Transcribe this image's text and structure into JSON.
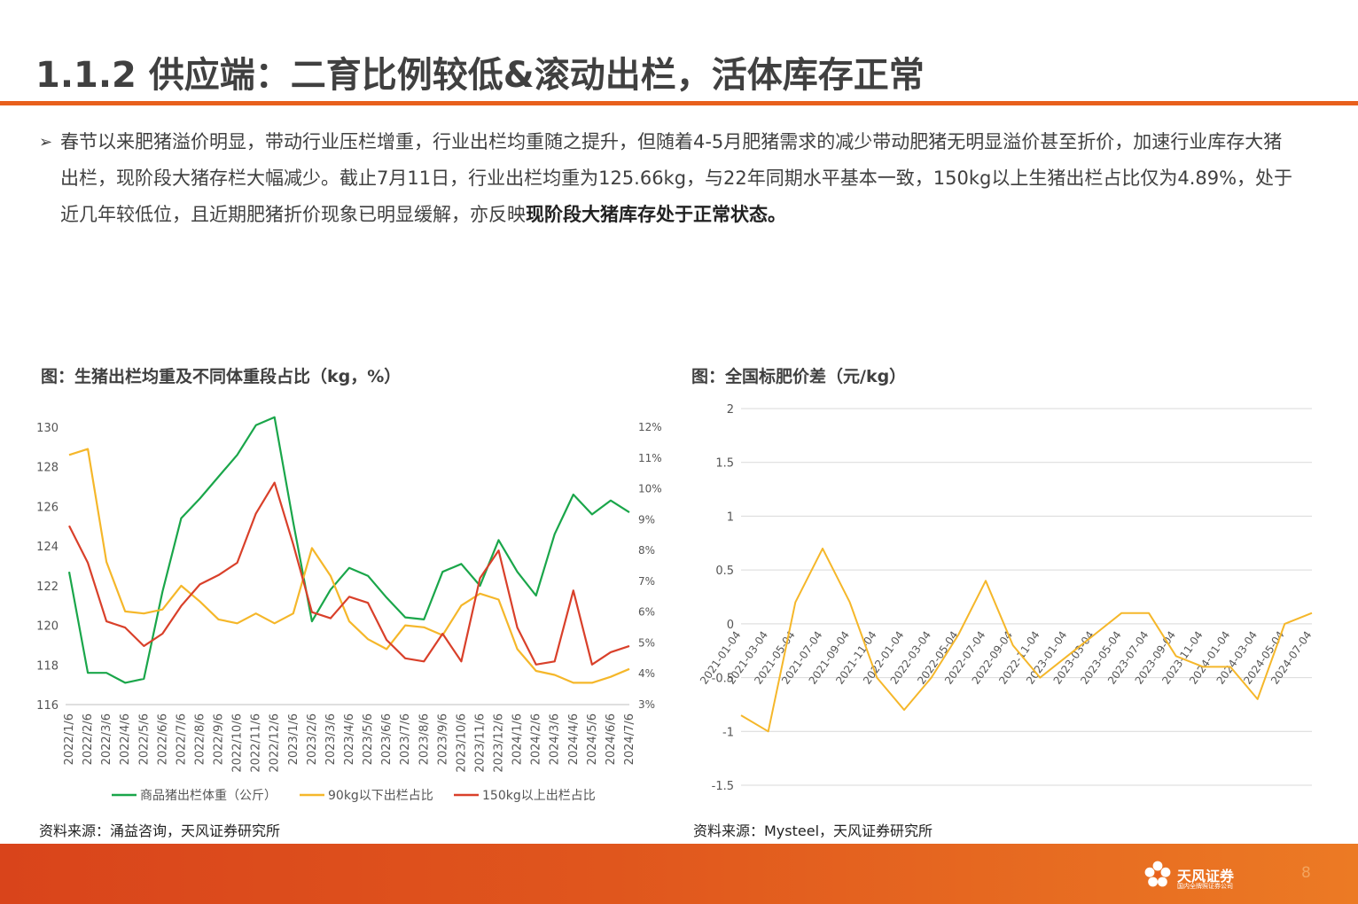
{
  "title": "1.1.2 供应端：二育比例较低&滚动出栏，活体库存正常",
  "bullet": {
    "arrow": "➢",
    "text": "春节以来肥猪溢价明显，带动行业压栏增重，行业出栏均重随之提升，但随着4-5月肥猪需求的减少带动肥猪无明显溢价甚至折价，加速行业库存大猪出栏，现阶段大猪存栏大幅减少。截止7月11日，行业出栏均重为125.66kg，与22年同期水平基本一致，150kg以上生猪出栏占比仅为4.89%，处于近几年较低位，且近期肥猪折价现象已明显缓解，亦反映",
    "bold": "现阶段大猪库存处于正常状态。"
  },
  "left_caption": "图：生猪出栏均重及不同体重段占比（kg，%）",
  "right_caption": "图：全国标肥价差（元/kg）",
  "left_source": "资料来源：涌益咨询，天风证券研究所",
  "right_source": "资料来源：Mysteel，天风证券研究所",
  "footer": {
    "logo_text": "天风证券",
    "logo_sub": "国内全牌照证券公司",
    "page": "8"
  },
  "colors": {
    "green": "#1aa64a",
    "yellow": "#f5b72a",
    "red": "#d9402a",
    "accent": "#e8601c"
  },
  "chart_data": [
    {
      "type": "line",
      "title": "图：生猪出栏均重及不同体重段占比（kg，%）",
      "x": [
        "2022/1/6",
        "2022/2/6",
        "2022/3/6",
        "2022/4/6",
        "2022/5/6",
        "2022/6/6",
        "2022/7/6",
        "2022/8/6",
        "2022/9/6",
        "2022/10/6",
        "2022/11/6",
        "2022/12/6",
        "2023/1/6",
        "2023/2/6",
        "2023/3/6",
        "2023/4/6",
        "2023/5/6",
        "2023/6/6",
        "2023/7/6",
        "2023/8/6",
        "2023/9/6",
        "2023/10/6",
        "2023/11/6",
        "2023/12/6",
        "2024/1/6",
        "2024/2/6",
        "2024/3/6",
        "2024/4/6",
        "2024/5/6",
        "2024/6/6",
        "2024/7/6"
      ],
      "y_left": {
        "label": "kg",
        "range": [
          116,
          130
        ],
        "ticks": [
          "116",
          "118",
          "120",
          "122",
          "124",
          "126",
          "128",
          "130"
        ]
      },
      "y_right": {
        "label": "%",
        "range": [
          3,
          12
        ],
        "ticks": [
          "3%",
          "4%",
          "5%",
          "6%",
          "7%",
          "8%",
          "9%",
          "10%",
          "11%",
          "12%"
        ]
      },
      "series": [
        {
          "name": "商品猪出栏体重（公斤）",
          "axis": "left",
          "color": "#1aa64a",
          "values": [
            122.7,
            117.6,
            117.6,
            117.1,
            117.3,
            121.7,
            125.4,
            126.4,
            127.5,
            128.6,
            130.1,
            130.5,
            125.2,
            120.2,
            121.8,
            122.9,
            122.5,
            121.4,
            120.4,
            120.3,
            122.7,
            123.1,
            122.0,
            124.3,
            122.7,
            121.5,
            124.6,
            126.6,
            125.6,
            126.3,
            125.7
          ]
        },
        {
          "name": "90kg以下出栏占比",
          "axis": "left",
          "color": "#f5b72a",
          "values": [
            128.6,
            128.9,
            123.2,
            120.7,
            120.6,
            120.8,
            122.0,
            121.2,
            120.3,
            120.1,
            120.6,
            120.1,
            120.6,
            123.9,
            122.5,
            120.2,
            119.3,
            118.8,
            120.0,
            119.9,
            119.5,
            121.0,
            121.6,
            121.3,
            118.8,
            117.7,
            117.5,
            117.1,
            117.1,
            117.4,
            117.8
          ]
        },
        {
          "name": "150kg以上出栏占比",
          "axis": "right",
          "color": "#d9402a",
          "values": [
            8.8,
            7.6,
            5.7,
            5.5,
            4.9,
            5.3,
            6.2,
            6.9,
            7.2,
            7.6,
            9.2,
            10.2,
            8.2,
            6.0,
            5.8,
            6.5,
            6.3,
            5.1,
            4.5,
            4.4,
            5.3,
            4.4,
            7.1,
            8.0,
            5.5,
            4.3,
            4.4,
            6.7,
            4.3,
            4.7,
            4.9
          ]
        }
      ],
      "legend": "bottom"
    },
    {
      "type": "line",
      "title": "图：全国标肥价差（元/kg）",
      "x": [
        "2021-01-04",
        "2021-03-04",
        "2021-05-04",
        "2021-07-04",
        "2021-09-04",
        "2021-11-04",
        "2022-01-04",
        "2022-03-04",
        "2022-05-04",
        "2022-07-04",
        "2022-09-04",
        "2022-11-04",
        "2023-01-04",
        "2023-03-04",
        "2023-05-04",
        "2023-07-04",
        "2023-09-04",
        "2023-11-04",
        "2024-01-04",
        "2024-03-04",
        "2024-05-04",
        "2024-07-04"
      ],
      "ylim": [
        -1.5,
        2
      ],
      "y_ticks": [
        "-1.5",
        "-1",
        "-0.5",
        "0",
        "0.5",
        "1",
        "1.5",
        "2"
      ],
      "series": [
        {
          "name": "全国标肥价差",
          "color": "#f5b72a",
          "values": [
            -0.85,
            -1.0,
            0.2,
            0.7,
            0.2,
            -0.5,
            -0.8,
            -0.5,
            -0.1,
            0.4,
            -0.2,
            -0.5,
            -0.3,
            -0.1,
            0.1,
            0.1,
            -0.3,
            -0.4,
            -0.4,
            -0.7,
            0.0,
            0.1
          ]
        }
      ]
    }
  ]
}
